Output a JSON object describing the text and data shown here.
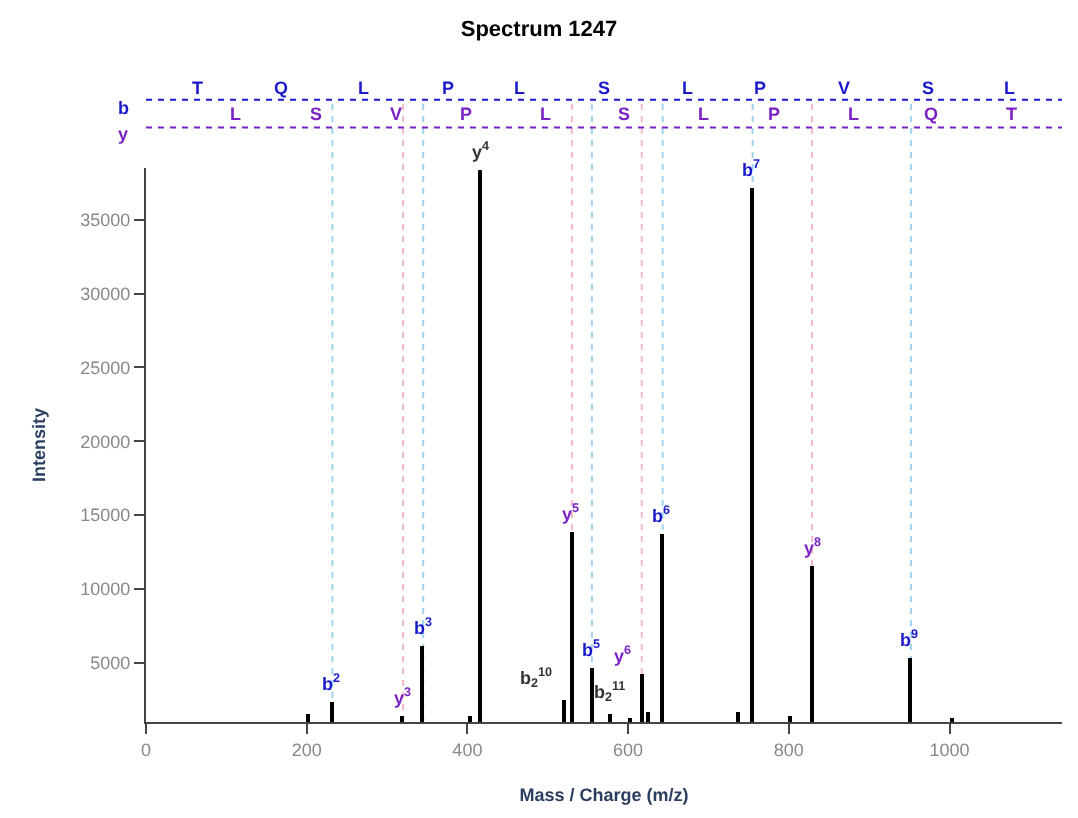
{
  "chart_data": {
    "type": "bar",
    "title": "Spectrum 1247",
    "xlabel": "Mass / Charge (m/z)",
    "ylabel": "Intensity",
    "x": [
      203,
      232,
      320,
      345,
      403,
      416,
      520,
      530,
      555,
      578,
      604,
      617,
      626,
      643,
      738,
      755,
      803,
      829,
      952,
      1004
    ],
    "series": [
      {
        "color": "#000000",
        "values": [
          1500,
          2400,
          1400,
          6200,
          1400,
          38400,
          2500,
          13900,
          4700,
          1500,
          1300,
          4300,
          1700,
          13700,
          1700,
          37200,
          1400,
          11600,
          5300,
          1300
        ]
      }
    ],
    "xlim": [
      0,
      1140
    ],
    "xticks": [
      0,
      200,
      400,
      600,
      800,
      1000
    ],
    "ylim": [
      1000,
      38500
    ],
    "yticks": [
      5000,
      10000,
      15000,
      20000,
      25000,
      30000,
      35000
    ],
    "grid": false,
    "ref_lines": [
      {
        "axis": "x",
        "value": 232,
        "color": "#9fd3ee",
        "line_style": "dotted"
      },
      {
        "axis": "x",
        "value": 345,
        "color": "#9fd3ee",
        "line_style": "dotted"
      },
      {
        "axis": "x",
        "value": 555,
        "color": "#9fd3ee",
        "line_style": "dotted"
      },
      {
        "axis": "x",
        "value": 643,
        "color": "#9fd3ee",
        "line_style": "dotted"
      },
      {
        "axis": "x",
        "value": 755,
        "color": "#9fd3ee",
        "line_style": "dotted"
      },
      {
        "axis": "x",
        "value": 952,
        "color": "#9fd3ee",
        "line_style": "dotted"
      },
      {
        "axis": "x",
        "value": 320,
        "color": "#f2b8c8",
        "line_style": "dotted"
      },
      {
        "axis": "x",
        "value": 530,
        "color": "#f2b8c8",
        "line_style": "dotted"
      },
      {
        "axis": "x",
        "value": 617,
        "color": "#f2b8c8",
        "line_style": "dotted"
      },
      {
        "axis": "x",
        "value": 829,
        "color": "#f2b8c8",
        "line_style": "dotted"
      }
    ],
    "annotations": [
      {
        "text": "b$^{2}$",
        "x": 232,
        "y": 2400
      },
      {
        "text": "y$^{3}$",
        "x": 320,
        "y": 1400
      },
      {
        "text": "b$^{3}$",
        "x": 345,
        "y": 6200
      },
      {
        "text": "y$^{4}$",
        "x": 416,
        "y": 38400
      },
      {
        "text": "b$_{2}$$^{10}$",
        "x": 520,
        "y": 2500
      },
      {
        "text": "y$^{5}$",
        "x": 530,
        "y": 13900
      },
      {
        "text": "b$^{5}$",
        "x": 555,
        "y": 4700
      },
      {
        "text": "b$_{2}$$^{11}$",
        "x": 578,
        "y": 1500
      },
      {
        "text": "y$^{6}$",
        "x": 617,
        "y": 4300
      },
      {
        "text": "b$^{6}$",
        "x": 643,
        "y": 13700
      },
      {
        "text": "b$^{7}$",
        "x": 755,
        "y": 37200
      },
      {
        "text": "y$^{8}$",
        "x": 829,
        "y": 11600
      },
      {
        "text": "b$^{9}$",
        "x": 952,
        "y": 5300
      },
      "b",
      "T",
      "Q",
      "L",
      "P",
      "L",
      "S",
      "L",
      "P",
      "V",
      "S",
      "L",
      "y",
      "L",
      "S",
      "V",
      "P",
      "L",
      "S",
      "L",
      "P",
      "L",
      "Q",
      "T"
    ]
  }
}
